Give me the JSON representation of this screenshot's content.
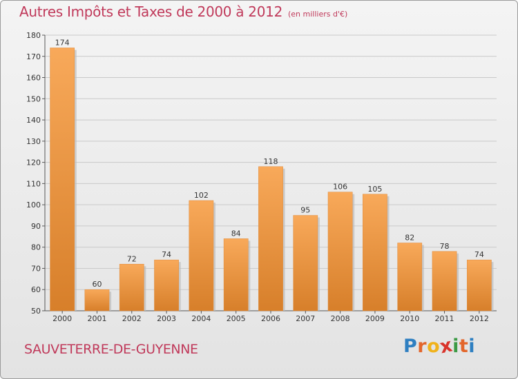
{
  "title": "Autres Impôts et Taxes de 2000 à 2012",
  "subtitle": "(en milliers d'€)",
  "commune": "SAUVETERRE-DE-GUYENNE",
  "logo": {
    "letters": [
      "P",
      "r",
      "o",
      "x",
      "i",
      "t",
      "i"
    ],
    "colors": [
      "#2e7fc1",
      "#e3662b",
      "#f0b21b",
      "#d9342b",
      "#3c9a45",
      "#e3662b",
      "#2e7fc1"
    ]
  },
  "colors": {
    "bar_light": "#f8a95a",
    "bar_dark": "#d77f2a",
    "title": "#c0395a"
  },
  "chart_data": {
    "type": "bar",
    "categories": [
      "2000",
      "2001",
      "2002",
      "2003",
      "2004",
      "2005",
      "2006",
      "2007",
      "2008",
      "2009",
      "2010",
      "2011",
      "2012"
    ],
    "values": [
      174,
      60,
      72,
      74,
      102,
      84,
      118,
      95,
      106,
      105,
      82,
      78,
      74
    ],
    "ylim": [
      50,
      180
    ],
    "yticks": [
      50,
      60,
      70,
      80,
      90,
      100,
      110,
      120,
      130,
      140,
      150,
      160,
      170,
      180
    ],
    "grid": true
  }
}
